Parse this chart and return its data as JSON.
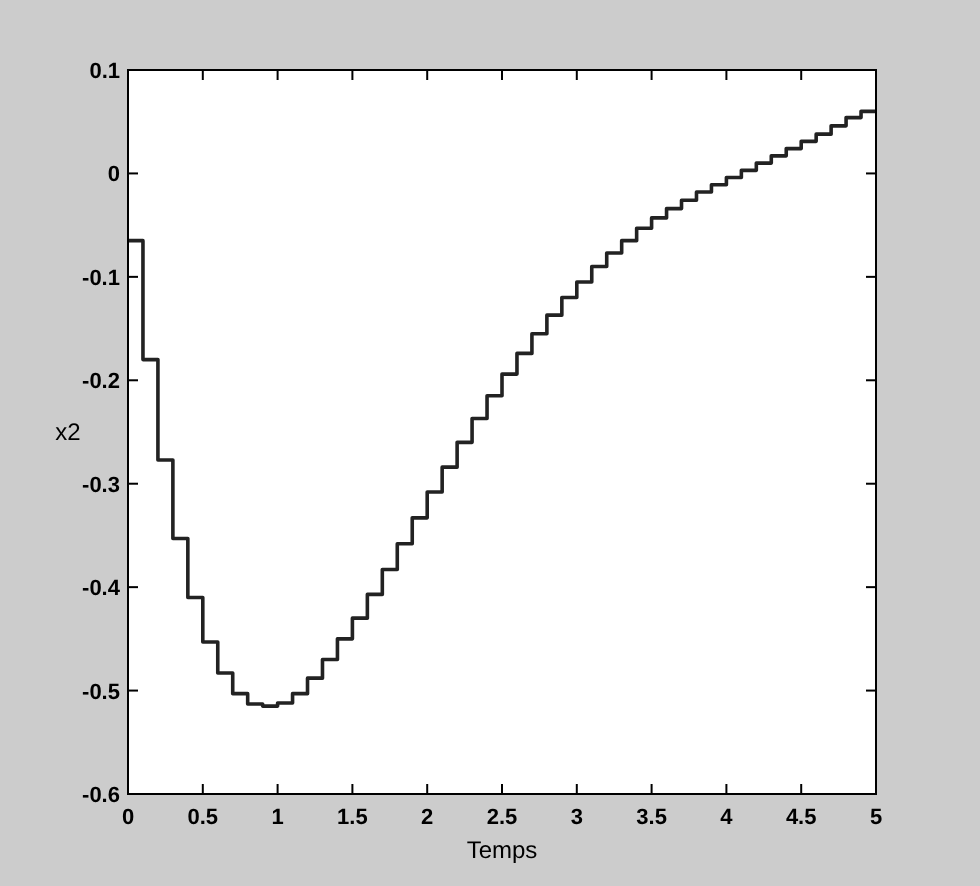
{
  "chart_data": {
    "type": "step",
    "xlabel": "Temps",
    "ylabel": "x2",
    "xlim": [
      0,
      5
    ],
    "ylim": [
      -0.6,
      0.1
    ],
    "xticks": [
      0,
      0.5,
      1,
      1.5,
      2,
      2.5,
      3,
      3.5,
      4,
      4.5,
      5
    ],
    "yticks": [
      -0.6,
      -0.5,
      -0.4,
      -0.3,
      -0.2,
      -0.1,
      0,
      0.1
    ],
    "x": [
      0,
      0.1,
      0.2,
      0.3,
      0.4,
      0.5,
      0.6,
      0.7,
      0.8,
      0.9,
      1,
      1.1,
      1.2,
      1.3,
      1.4,
      1.5,
      1.6,
      1.7,
      1.8,
      1.9,
      2,
      2.1,
      2.2,
      2.3,
      2.4,
      2.5,
      2.6,
      2.7,
      2.8,
      2.9,
      3,
      3.1,
      3.2,
      3.3,
      3.4,
      3.5,
      3.6,
      3.7,
      3.8,
      3.9,
      4,
      4.1,
      4.2,
      4.3,
      4.4,
      4.5,
      4.6,
      4.7,
      4.8,
      4.9,
      5
    ],
    "series": [
      {
        "color": "#222222",
        "values": [
          -0.065,
          -0.18,
          -0.277,
          -0.353,
          -0.41,
          -0.453,
          -0.483,
          -0.503,
          -0.513,
          -0.515,
          -0.512,
          -0.503,
          -0.488,
          -0.47,
          -0.45,
          -0.43,
          -0.407,
          -0.383,
          -0.358,
          -0.333,
          -0.308,
          -0.284,
          -0.26,
          -0.237,
          -0.215,
          -0.194,
          -0.174,
          -0.155,
          -0.137,
          -0.12,
          -0.105,
          -0.09,
          -0.077,
          -0.065,
          -0.053,
          -0.043,
          -0.034,
          -0.026,
          -0.018,
          -0.011,
          -0.004,
          0.003,
          0.01,
          0.017,
          0.024,
          0.031,
          0.038,
          0.046,
          0.054,
          0.06,
          0.06
        ]
      }
    ]
  }
}
